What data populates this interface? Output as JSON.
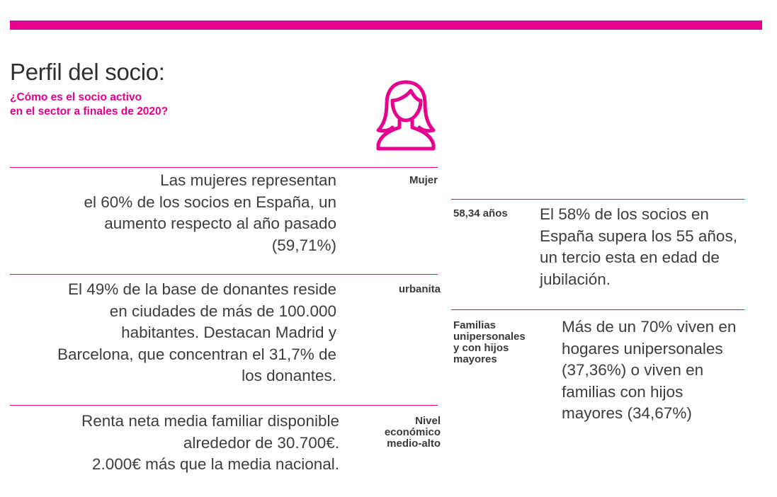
{
  "header": {
    "title": "Perfil del socio:",
    "subtitle_line1": "¿Cómo es el socio activo",
    "subtitle_line2": "en el sector a finales de 2020?"
  },
  "icon": "woman-profile-icon",
  "colors": {
    "accent": "#e5008e",
    "text": "#3a3a3a"
  },
  "left_sections": [
    {
      "label": "Mujer",
      "lines": [
        "Las mujeres representan",
        "el 60%  de los socios en España, un",
        "aumento respecto al año pasado",
        "(59,71%)"
      ]
    },
    {
      "label": "urbanita",
      "lines": [
        "El 49% de la base de donantes reside",
        "en ciudades de más de 100.000",
        "habitantes. Destacan Madrid y",
        "Barcelona, que concentran el 31,7% de",
        "los donantes."
      ]
    },
    {
      "label_lines": [
        "Nivel",
        "económico",
        "medio-alto"
      ],
      "lines": [
        "Renta neta media familiar  disponible",
        "alrededor de  30.700€.",
        "2.000€ más que la media nacional."
      ]
    }
  ],
  "right_sections": [
    {
      "label": "58,34 años",
      "lines": [
        "El 58% de los socios en",
        "España supera los 55 años,",
        "un tercio esta en edad de",
        "jubilación."
      ]
    },
    {
      "label_lines": [
        "Familias",
        "unipersonales",
        "y con hijos",
        "mayores"
      ],
      "lines": [
        "Más de un 70% viven en",
        "hogares unipersonales",
        "(37,36%) o viven en",
        "familias con hijos",
        "mayores (34,67%)"
      ]
    }
  ]
}
